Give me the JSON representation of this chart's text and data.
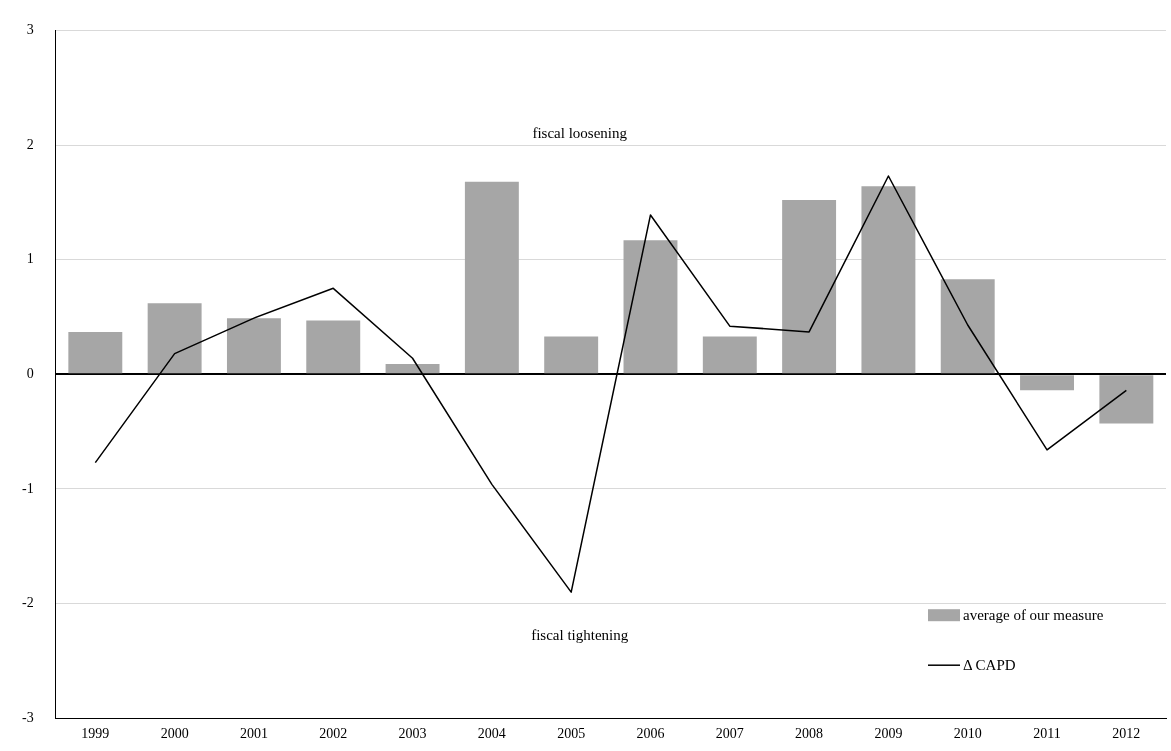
{
  "chart_data": {
    "type": "bar",
    "categories": [
      "1999",
      "2000",
      "2001",
      "2002",
      "2003",
      "2004",
      "2005",
      "2006",
      "2007",
      "2008",
      "2009",
      "2010",
      "2011",
      "2012"
    ],
    "series": [
      {
        "name": "average of our measure",
        "color": "#a6a6a6",
        "values": [
          0.37,
          0.62,
          0.49,
          0.47,
          0.09,
          1.68,
          0.33,
          1.17,
          0.33,
          1.52,
          1.64,
          0.83,
          -0.14,
          -0.43
        ]
      },
      {
        "name": "Δ CAPD",
        "type": "line",
        "color": "#000000",
        "values": [
          -0.77,
          0.18,
          0.49,
          0.75,
          0.14,
          -0.96,
          -1.9,
          1.39,
          0.42,
          0.37,
          1.73,
          0.43,
          -0.66,
          -0.14
        ]
      }
    ],
    "ylim": [
      -3,
      3
    ],
    "yticks": [
      -3,
      -2,
      -1,
      0,
      1,
      2,
      3
    ],
    "grid": "y",
    "legend": "bottom right",
    "marker": "none",
    "line_style": "solid",
    "annotations": [
      "fiscal loosening",
      "fiscal tightening"
    ]
  }
}
